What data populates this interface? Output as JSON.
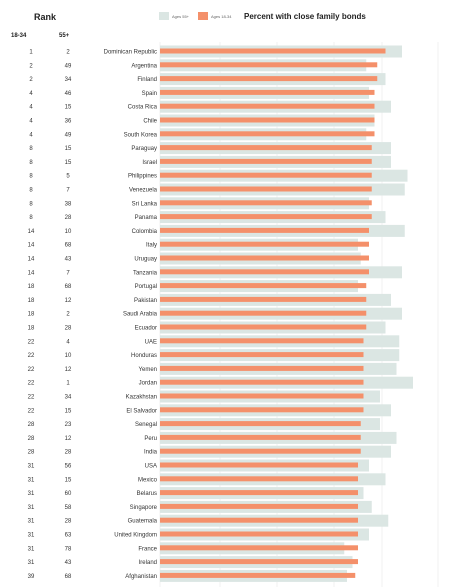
{
  "header": {
    "rank_title": "Rank",
    "col_18_34": "18-34",
    "col_55_plus": "55+",
    "chart_title": "Percent with close family bonds"
  },
  "legend": {
    "ages_55_label": "Ages 55+",
    "ages_18_34_label": "Ages 18-34",
    "ages_55_color": "#dbe6e3",
    "ages_18_34_color": "#f4906a"
  },
  "chart_data": {
    "type": "bar",
    "title": "Percent with close family bonds",
    "orientation": "horizontal",
    "categories": [
      "Dominican Republic",
      "Argentina",
      "Finland",
      "Spain",
      "Costa Rica",
      "Chile",
      "South Korea",
      "Paraguay",
      "Israel",
      "Philippines",
      "Venezuela",
      "Sri Lanka",
      "Panama",
      "Colombia",
      "Italy",
      "Uruguay",
      "Tanzania",
      "Portugal",
      "Pakistan",
      "Saudi Arabia",
      "Ecuador",
      "UAE",
      "Honduras",
      "Yemen",
      "Jordan",
      "Kazakhstan",
      "El Salvador",
      "Senegal",
      "Peru",
      "India",
      "USA",
      "Mexico",
      "Belarus",
      "Singapore",
      "Guatemala",
      "United Kingdom",
      "France",
      "Ireland",
      "Afghanistan"
    ],
    "rank_18_34": [
      1,
      2,
      2,
      4,
      4,
      4,
      4,
      8,
      8,
      8,
      8,
      8,
      8,
      14,
      14,
      14,
      14,
      18,
      18,
      18,
      18,
      22,
      22,
      22,
      22,
      22,
      22,
      28,
      28,
      28,
      31,
      31,
      31,
      31,
      31,
      31,
      31,
      31,
      39
    ],
    "rank_55_plus": [
      2,
      49,
      34,
      46,
      15,
      36,
      49,
      15,
      15,
      5,
      7,
      38,
      28,
      10,
      68,
      43,
      7,
      68,
      12,
      2,
      28,
      4,
      10,
      12,
      1,
      34,
      15,
      23,
      12,
      28,
      56,
      15,
      60,
      58,
      28,
      63,
      78,
      43,
      68
    ],
    "series": [
      {
        "name": "Ages 55+",
        "color": "#dbe6e3",
        "values": [
          88,
          75,
          82,
          76,
          84,
          78,
          75,
          84,
          84,
          90,
          89,
          76,
          82,
          89,
          72,
          73,
          88,
          72,
          84,
          88,
          82,
          87,
          87,
          86,
          92,
          80,
          84,
          80,
          86,
          84,
          76,
          82,
          74,
          77,
          83,
          76,
          67,
          70,
          68
        ]
      },
      {
        "name": "Ages 18-34",
        "color": "#f4906a",
        "values": [
          82,
          79,
          79,
          78,
          78,
          78,
          78,
          77,
          77,
          77,
          77,
          77,
          77,
          76,
          76,
          76,
          76,
          75,
          75,
          75,
          75,
          74,
          74,
          74,
          74,
          74,
          74,
          73,
          73,
          73,
          72,
          72,
          72,
          72,
          72,
          72,
          72,
          72,
          71
        ]
      }
    ]
  }
}
